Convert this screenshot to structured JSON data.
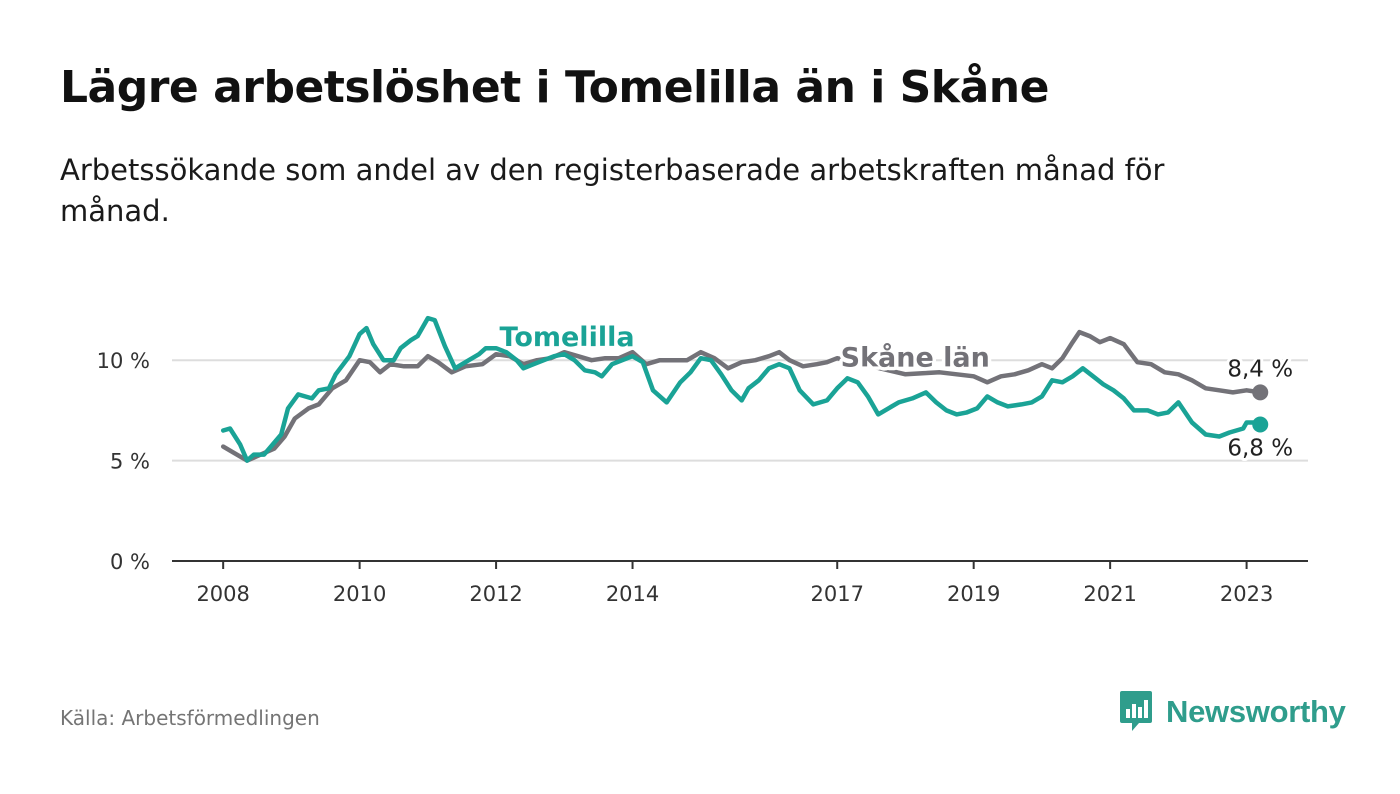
{
  "header": {
    "title": "Lägre arbetslöshet i Tomelilla än i Skåne",
    "subtitle": "Arbetssökande som andel av den registerbaserade arbetskraften månad för månad."
  },
  "footer": {
    "source": "Källa: Arbetsförmedlingen",
    "brand": "Newsworthy"
  },
  "colors": {
    "tomelilla": "#1aa396",
    "skane": "#737278",
    "brand": "#2f9d8c",
    "grid": "#dddddd",
    "axis": "#333333"
  },
  "icons": {
    "brand_logo": "bar-chart-speech-bubble-icon"
  },
  "chart_data": {
    "type": "line",
    "title": "Lägre arbetslöshet i Tomelilla än i Skåne",
    "xlabel": "",
    "ylabel": "",
    "x_ticks": [
      "2008",
      "2010",
      "2012",
      "2014",
      "2017",
      "2019",
      "2021",
      "2023"
    ],
    "y_ticks": [
      "0 %",
      "5 %",
      "10 %"
    ],
    "ylim": [
      0,
      13
    ],
    "xlim": [
      2007.25,
      2023.9
    ],
    "grid": true,
    "series": [
      {
        "name": "Tomelilla",
        "end_label": "6,8 %",
        "points": [
          [
            2008.0,
            6.5
          ],
          [
            2008.1,
            6.6
          ],
          [
            2008.25,
            5.8
          ],
          [
            2008.35,
            5.0
          ],
          [
            2008.45,
            5.3
          ],
          [
            2008.6,
            5.3
          ],
          [
            2008.7,
            5.7
          ],
          [
            2008.85,
            6.3
          ],
          [
            2008.95,
            7.6
          ],
          [
            2009.1,
            8.3
          ],
          [
            2009.3,
            8.1
          ],
          [
            2009.4,
            8.5
          ],
          [
            2009.55,
            8.6
          ],
          [
            2009.65,
            9.3
          ],
          [
            2009.85,
            10.2
          ],
          [
            2010.0,
            11.3
          ],
          [
            2010.1,
            11.6
          ],
          [
            2010.2,
            10.8
          ],
          [
            2010.35,
            10.0
          ],
          [
            2010.5,
            10.0
          ],
          [
            2010.6,
            10.6
          ],
          [
            2010.75,
            11.0
          ],
          [
            2010.85,
            11.2
          ],
          [
            2011.0,
            12.1
          ],
          [
            2011.1,
            12.0
          ],
          [
            2011.25,
            10.7
          ],
          [
            2011.4,
            9.6
          ],
          [
            2011.6,
            10.0
          ],
          [
            2011.75,
            10.3
          ],
          [
            2011.85,
            10.6
          ],
          [
            2012.0,
            10.6
          ],
          [
            2012.15,
            10.4
          ],
          [
            2012.3,
            10.0
          ],
          [
            2012.4,
            9.6
          ],
          [
            2012.55,
            9.8
          ],
          [
            2012.7,
            10.0
          ],
          [
            2012.85,
            10.2
          ],
          [
            2013.0,
            10.3
          ],
          [
            2013.15,
            10.0
          ],
          [
            2013.3,
            9.5
          ],
          [
            2013.45,
            9.4
          ],
          [
            2013.55,
            9.2
          ],
          [
            2013.7,
            9.8
          ],
          [
            2013.85,
            10.0
          ],
          [
            2014.0,
            10.2
          ],
          [
            2014.15,
            9.9
          ],
          [
            2014.3,
            8.5
          ],
          [
            2014.5,
            7.9
          ],
          [
            2014.7,
            8.9
          ],
          [
            2014.85,
            9.4
          ],
          [
            2015.0,
            10.1
          ],
          [
            2015.15,
            10.0
          ],
          [
            2015.3,
            9.3
          ],
          [
            2015.45,
            8.5
          ],
          [
            2015.6,
            8.0
          ],
          [
            2015.7,
            8.6
          ],
          [
            2015.85,
            9.0
          ],
          [
            2016.0,
            9.6
          ],
          [
            2016.15,
            9.8
          ],
          [
            2016.3,
            9.6
          ],
          [
            2016.45,
            8.5
          ],
          [
            2016.65,
            7.8
          ],
          [
            2016.85,
            8.0
          ],
          [
            2017.0,
            8.6
          ],
          [
            2017.15,
            9.1
          ],
          [
            2017.3,
            8.9
          ],
          [
            2017.45,
            8.2
          ],
          [
            2017.6,
            7.3
          ],
          [
            2017.75,
            7.6
          ],
          [
            2017.9,
            7.9
          ],
          [
            2018.1,
            8.1
          ],
          [
            2018.3,
            8.4
          ],
          [
            2018.45,
            7.9
          ],
          [
            2018.6,
            7.5
          ],
          [
            2018.75,
            7.3
          ],
          [
            2018.9,
            7.4
          ],
          [
            2019.05,
            7.6
          ],
          [
            2019.2,
            8.2
          ],
          [
            2019.35,
            7.9
          ],
          [
            2019.5,
            7.7
          ],
          [
            2019.7,
            7.8
          ],
          [
            2019.85,
            7.9
          ],
          [
            2020.0,
            8.2
          ],
          [
            2020.15,
            9.0
          ],
          [
            2020.3,
            8.9
          ],
          [
            2020.45,
            9.2
          ],
          [
            2020.6,
            9.6
          ],
          [
            2020.75,
            9.2
          ],
          [
            2020.9,
            8.8
          ],
          [
            2021.05,
            8.5
          ],
          [
            2021.2,
            8.1
          ],
          [
            2021.35,
            7.5
          ],
          [
            2021.55,
            7.5
          ],
          [
            2021.7,
            7.3
          ],
          [
            2021.85,
            7.4
          ],
          [
            2022.0,
            7.9
          ],
          [
            2022.2,
            6.9
          ],
          [
            2022.4,
            6.3
          ],
          [
            2022.6,
            6.2
          ],
          [
            2022.75,
            6.4
          ],
          [
            2022.95,
            6.6
          ],
          [
            2023.0,
            6.9
          ],
          [
            2023.1,
            6.9
          ],
          [
            2023.2,
            6.8
          ]
        ]
      },
      {
        "name": "Skåne län",
        "end_label": "8,4 %",
        "points": [
          [
            2008.0,
            5.7
          ],
          [
            2008.15,
            5.4
          ],
          [
            2008.35,
            5.0
          ],
          [
            2008.55,
            5.3
          ],
          [
            2008.75,
            5.6
          ],
          [
            2008.9,
            6.2
          ],
          [
            2009.05,
            7.1
          ],
          [
            2009.25,
            7.6
          ],
          [
            2009.4,
            7.8
          ],
          [
            2009.6,
            8.6
          ],
          [
            2009.8,
            9.0
          ],
          [
            2010.0,
            10.0
          ],
          [
            2010.15,
            9.9
          ],
          [
            2010.3,
            9.4
          ],
          [
            2010.45,
            9.8
          ],
          [
            2010.65,
            9.7
          ],
          [
            2010.85,
            9.7
          ],
          [
            2011.0,
            10.2
          ],
          [
            2011.15,
            9.9
          ],
          [
            2011.35,
            9.4
          ],
          [
            2011.55,
            9.7
          ],
          [
            2011.8,
            9.8
          ],
          [
            2012.0,
            10.3
          ],
          [
            2012.2,
            10.2
          ],
          [
            2012.4,
            9.8
          ],
          [
            2012.6,
            10.0
          ],
          [
            2012.8,
            10.1
          ],
          [
            2013.0,
            10.4
          ],
          [
            2013.2,
            10.2
          ],
          [
            2013.4,
            10.0
          ],
          [
            2013.6,
            10.1
          ],
          [
            2013.8,
            10.1
          ],
          [
            2014.0,
            10.4
          ],
          [
            2014.2,
            9.8
          ],
          [
            2014.4,
            10.0
          ],
          [
            2014.6,
            10.0
          ],
          [
            2014.8,
            10.0
          ],
          [
            2015.0,
            10.4
          ],
          [
            2015.2,
            10.1
          ],
          [
            2015.4,
            9.6
          ],
          [
            2015.6,
            9.9
          ],
          [
            2015.8,
            10.0
          ],
          [
            2016.0,
            10.2
          ],
          [
            2016.15,
            10.4
          ],
          [
            2016.3,
            10.0
          ],
          [
            2016.5,
            9.7
          ],
          [
            2016.7,
            9.8
          ],
          [
            2016.85,
            9.9
          ],
          [
            2017.0,
            10.1
          ],
          [
            2018.0,
            9.3
          ],
          [
            2018.5,
            9.4
          ],
          [
            2019.0,
            9.2
          ],
          [
            2019.2,
            8.9
          ],
          [
            2019.4,
            9.2
          ],
          [
            2019.6,
            9.3
          ],
          [
            2019.8,
            9.5
          ],
          [
            2020.0,
            9.8
          ],
          [
            2020.15,
            9.6
          ],
          [
            2020.3,
            10.1
          ],
          [
            2020.45,
            10.9
          ],
          [
            2020.55,
            11.4
          ],
          [
            2020.7,
            11.2
          ],
          [
            2020.85,
            10.9
          ],
          [
            2021.0,
            11.1
          ],
          [
            2021.2,
            10.8
          ],
          [
            2021.4,
            9.9
          ],
          [
            2021.6,
            9.8
          ],
          [
            2021.8,
            9.4
          ],
          [
            2022.0,
            9.3
          ],
          [
            2022.2,
            9.0
          ],
          [
            2022.4,
            8.6
          ],
          [
            2022.6,
            8.5
          ],
          [
            2022.8,
            8.4
          ],
          [
            2023.0,
            8.5
          ],
          [
            2023.2,
            8.4
          ]
        ]
      }
    ]
  }
}
